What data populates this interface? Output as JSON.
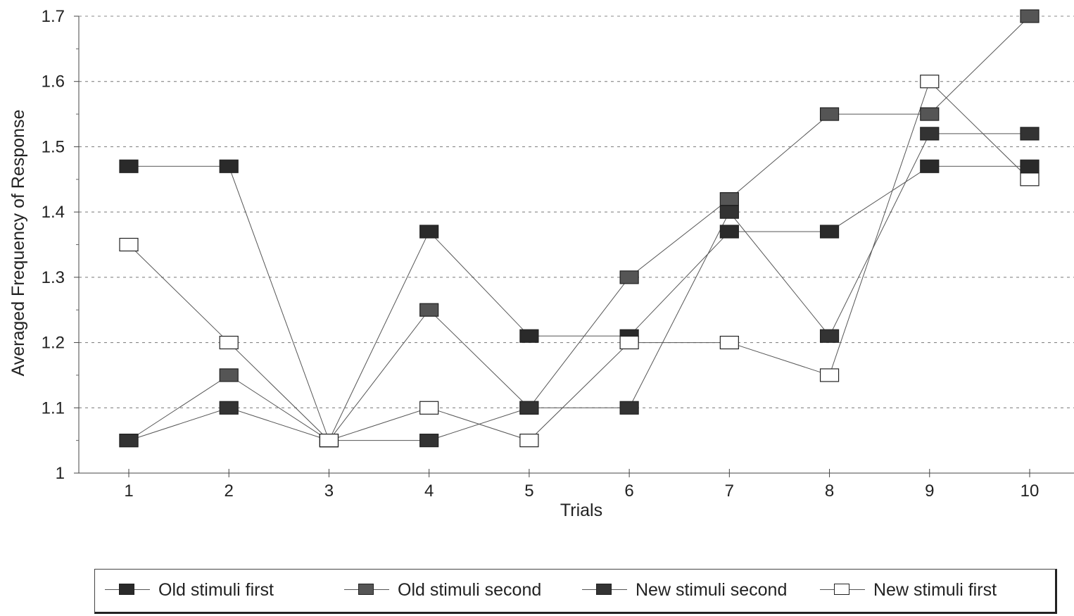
{
  "chart_data": {
    "type": "line",
    "xlabel": "Trials",
    "ylabel": "Averaged Frequency of Response",
    "x": [
      1,
      2,
      3,
      4,
      5,
      6,
      7,
      8,
      9,
      10
    ],
    "ylim": [
      1,
      1.7
    ],
    "yticks": [
      "1",
      "1.1",
      "1.2",
      "1.3",
      "1.4",
      "1.5",
      "1.6",
      "1.7"
    ],
    "grid": "horizontal-dashed",
    "legend_position": "bottom",
    "series": [
      {
        "name": "Old stimuli first",
        "marker": "filled-square",
        "color": "#2a2a2a",
        "values": [
          1.47,
          1.47,
          1.05,
          1.37,
          1.21,
          1.21,
          1.37,
          1.37,
          1.47,
          1.47
        ]
      },
      {
        "name": "Old stimuli second",
        "marker": "gray-square",
        "color": "#555555",
        "values": [
          1.05,
          1.15,
          1.05,
          1.25,
          1.1,
          1.3,
          1.42,
          1.55,
          1.55,
          1.7
        ]
      },
      {
        "name": "New stimuli second",
        "marker": "filled-square",
        "color": "#333333",
        "values": [
          1.05,
          1.1,
          1.05,
          1.05,
          1.1,
          1.1,
          1.4,
          1.21,
          1.52,
          1.52
        ]
      },
      {
        "name": "New stimuli first",
        "marker": "open-square",
        "color": "#ffffff",
        "values": [
          1.35,
          1.2,
          1.05,
          1.1,
          1.05,
          1.2,
          1.2,
          1.15,
          1.6,
          1.45
        ]
      }
    ]
  }
}
